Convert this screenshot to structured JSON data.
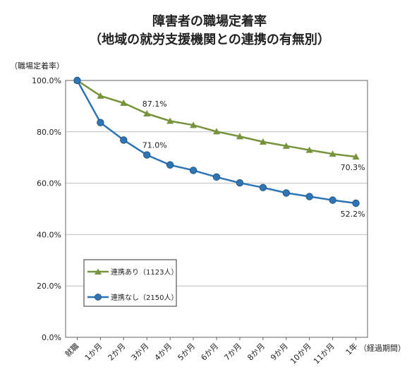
{
  "chart_data": {
    "type": "line",
    "title": "障害者の職場定着率",
    "subtitle": "（地域の就労支援機関との連携の有無別）",
    "ylabel": "（職場定着率）",
    "xlabel": "（経過期間）",
    "categories": [
      "就職",
      "1か月",
      "2か月",
      "3か月",
      "4か月",
      "5か月",
      "6か月",
      "7か月",
      "8か月",
      "9か月",
      "10か月",
      "11か月",
      "1年"
    ],
    "ylim": [
      0,
      100
    ],
    "yticks": [
      "0.0%",
      "20.0%",
      "40.0%",
      "60.0%",
      "80.0%",
      "100.0%"
    ],
    "grid": true,
    "legend_position": "bottom-left",
    "series": [
      {
        "name": "連携あり（1123人）",
        "color": "#77933c",
        "marker": "triangle",
        "values": [
          100,
          94.0,
          91.2,
          87.1,
          84.2,
          82.6,
          80.1,
          78.2,
          76.1,
          74.5,
          72.9,
          71.4,
          70.3
        ]
      },
      {
        "name": "連携なし（2150人）",
        "color": "#2e75b6",
        "marker": "circle",
        "values": [
          100,
          83.6,
          76.8,
          71.0,
          67.1,
          65.0,
          62.4,
          60.1,
          58.3,
          56.2,
          54.8,
          53.4,
          52.2
        ]
      }
    ],
    "data_labels": [
      {
        "series": 0,
        "index": 3,
        "text": "87.1%"
      },
      {
        "series": 1,
        "index": 3,
        "text": "71.0%"
      },
      {
        "series": 0,
        "index": 12,
        "text": "70.3%"
      },
      {
        "series": 1,
        "index": 12,
        "text": "52.2%"
      }
    ]
  }
}
